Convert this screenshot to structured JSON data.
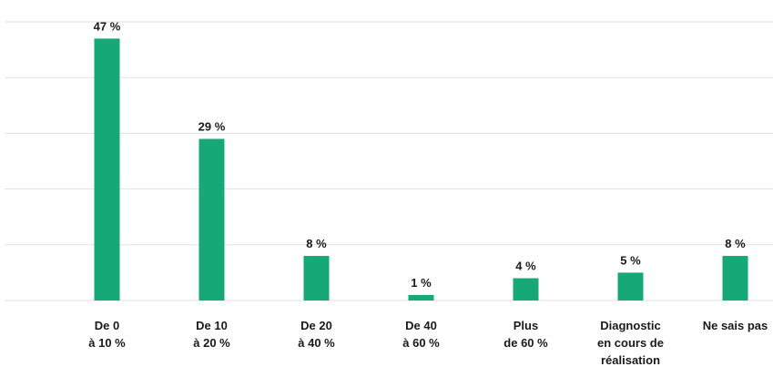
{
  "chart_data": {
    "type": "bar",
    "categories": [
      "De 0\nà 10 %",
      "De 10\nà 20 %",
      "De 20\nà 40 %",
      "De 40\nà 60 %",
      "Plus\nde 60 %",
      "Diagnostic\nen cours de\nréalisation",
      "Ne sais pas"
    ],
    "values": [
      47,
      29,
      8,
      1,
      4,
      5,
      8
    ],
    "value_labels": [
      "47 %",
      "29 %",
      "8 %",
      "1 %",
      "4 %",
      "5 %",
      "8 %"
    ],
    "color": "#17a878",
    "ylim": [
      0,
      50
    ],
    "yticks": [
      0,
      10,
      20,
      30,
      40,
      50
    ],
    "grid": true
  }
}
